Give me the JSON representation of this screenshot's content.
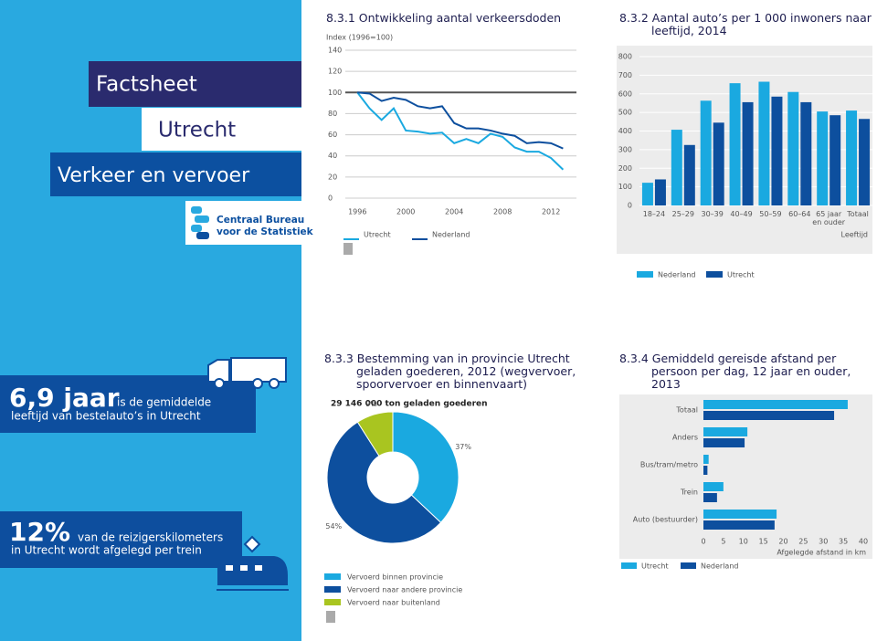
{
  "sidebar": {
    "label": "Factsheet",
    "region": "Utrecht",
    "theme": "Verkeer en vervoer",
    "logo_lines": [
      "Centraal Bureau",
      "voor de Statistiek"
    ]
  },
  "facts": [
    {
      "highlight": "6,9 jaar",
      "lines": [
        "is de gemiddelde",
        "leeftijd van bestelauto’s in Utrecht"
      ]
    },
    {
      "highlight": "12%",
      "lines": [
        "van de reizigerskilometers",
        "in Utrecht wordt afgelegd per trein"
      ]
    }
  ],
  "chart_data": [
    {
      "type": "line",
      "title": "8.3.1 Ontwikkeling aantal verkeersdoden",
      "y_label": "Index (1996=100)",
      "x": [
        1996,
        1997,
        1998,
        1999,
        2000,
        2001,
        2002,
        2003,
        2004,
        2005,
        2006,
        2007,
        2008,
        2009,
        2010,
        2011,
        2012,
        2013
      ],
      "xlim": [
        1995,
        2013.5
      ],
      "xticks": [
        1996,
        2000,
        2004,
        2008,
        2012
      ],
      "ylim": [
        0,
        140
      ],
      "yticks": [
        0,
        20,
        40,
        60,
        80,
        100,
        120,
        140
      ],
      "reference_line": 100,
      "grid": true,
      "series": [
        {
          "name": "Utrecht",
          "color": "#1aa9e0",
          "values": [
            100,
            85,
            74,
            85,
            64,
            63,
            61,
            62,
            52,
            56,
            52,
            61,
            58,
            48,
            44,
            44,
            38,
            27
          ]
        },
        {
          "name": "Nederland",
          "color": "#0d4f9e",
          "values": [
            100,
            99,
            92,
            95,
            93,
            87,
            85,
            87,
            71,
            66,
            66,
            64,
            61,
            59,
            52,
            53,
            52,
            47
          ]
        }
      ]
    },
    {
      "type": "bar",
      "title": "8.3.2 Aantal auto’s per 1 000 inwoners naar leeftijd, 2014",
      "x_label": "Leeftijd",
      "categories": [
        "18–24",
        "25–29",
        "30–39",
        "40–49",
        "50–59",
        "60–64",
        "65 jaar en ouder",
        "Totaal"
      ],
      "ylim": [
        0,
        800
      ],
      "yticks": [
        0,
        100,
        200,
        300,
        400,
        500,
        600,
        700,
        800
      ],
      "grid": true,
      "series": [
        {
          "name": "Nederland",
          "color": "#1aa9e0",
          "values": [
            122,
            407,
            563,
            657,
            665,
            610,
            505,
            510
          ]
        },
        {
          "name": "Utrecht",
          "color": "#0d4f9e",
          "values": [
            140,
            325,
            445,
            555,
            585,
            555,
            485,
            465
          ]
        }
      ]
    },
    {
      "type": "pie",
      "title": "8.3.3 Bestemming van in provincie Utrecht geladen goederen, 2012 (wegvervoer, spoorvervoer en binnenvaart)",
      "subtitle": "29 146 000 ton geladen goederen",
      "categories": [
        "Vervoerd binnen provincie",
        "Vervoerd naar andere provincie",
        "Vervoerd naar buitenland"
      ],
      "values": [
        37,
        54,
        9
      ],
      "value_labels": [
        "37%",
        "54%",
        "9%"
      ],
      "colors": [
        "#1aa9e0",
        "#0d4f9e",
        "#a9c520"
      ],
      "donut": true
    },
    {
      "type": "hbar",
      "title": "8.3.4 Gemiddeld gereisde afstand per persoon per dag, 12 jaar en ouder, 2013",
      "x_label": "Afgelegde afstand in km",
      "categories": [
        "Totaal",
        "Anders",
        "Bus/tram/metro",
        "Trein",
        "Auto (bestuurder)"
      ],
      "xlim": [
        0,
        40
      ],
      "xticks": [
        0,
        5,
        10,
        15,
        20,
        25,
        30,
        35,
        40
      ],
      "series": [
        {
          "name": "Utrecht",
          "color": "#1aa9e0",
          "values": [
            36.1,
            11,
            1.3,
            5,
            18.3
          ]
        },
        {
          "name": "Nederland",
          "color": "#0d4f9e",
          "values": [
            32.7,
            10.3,
            1,
            3.4,
            17.8
          ]
        }
      ]
    }
  ]
}
